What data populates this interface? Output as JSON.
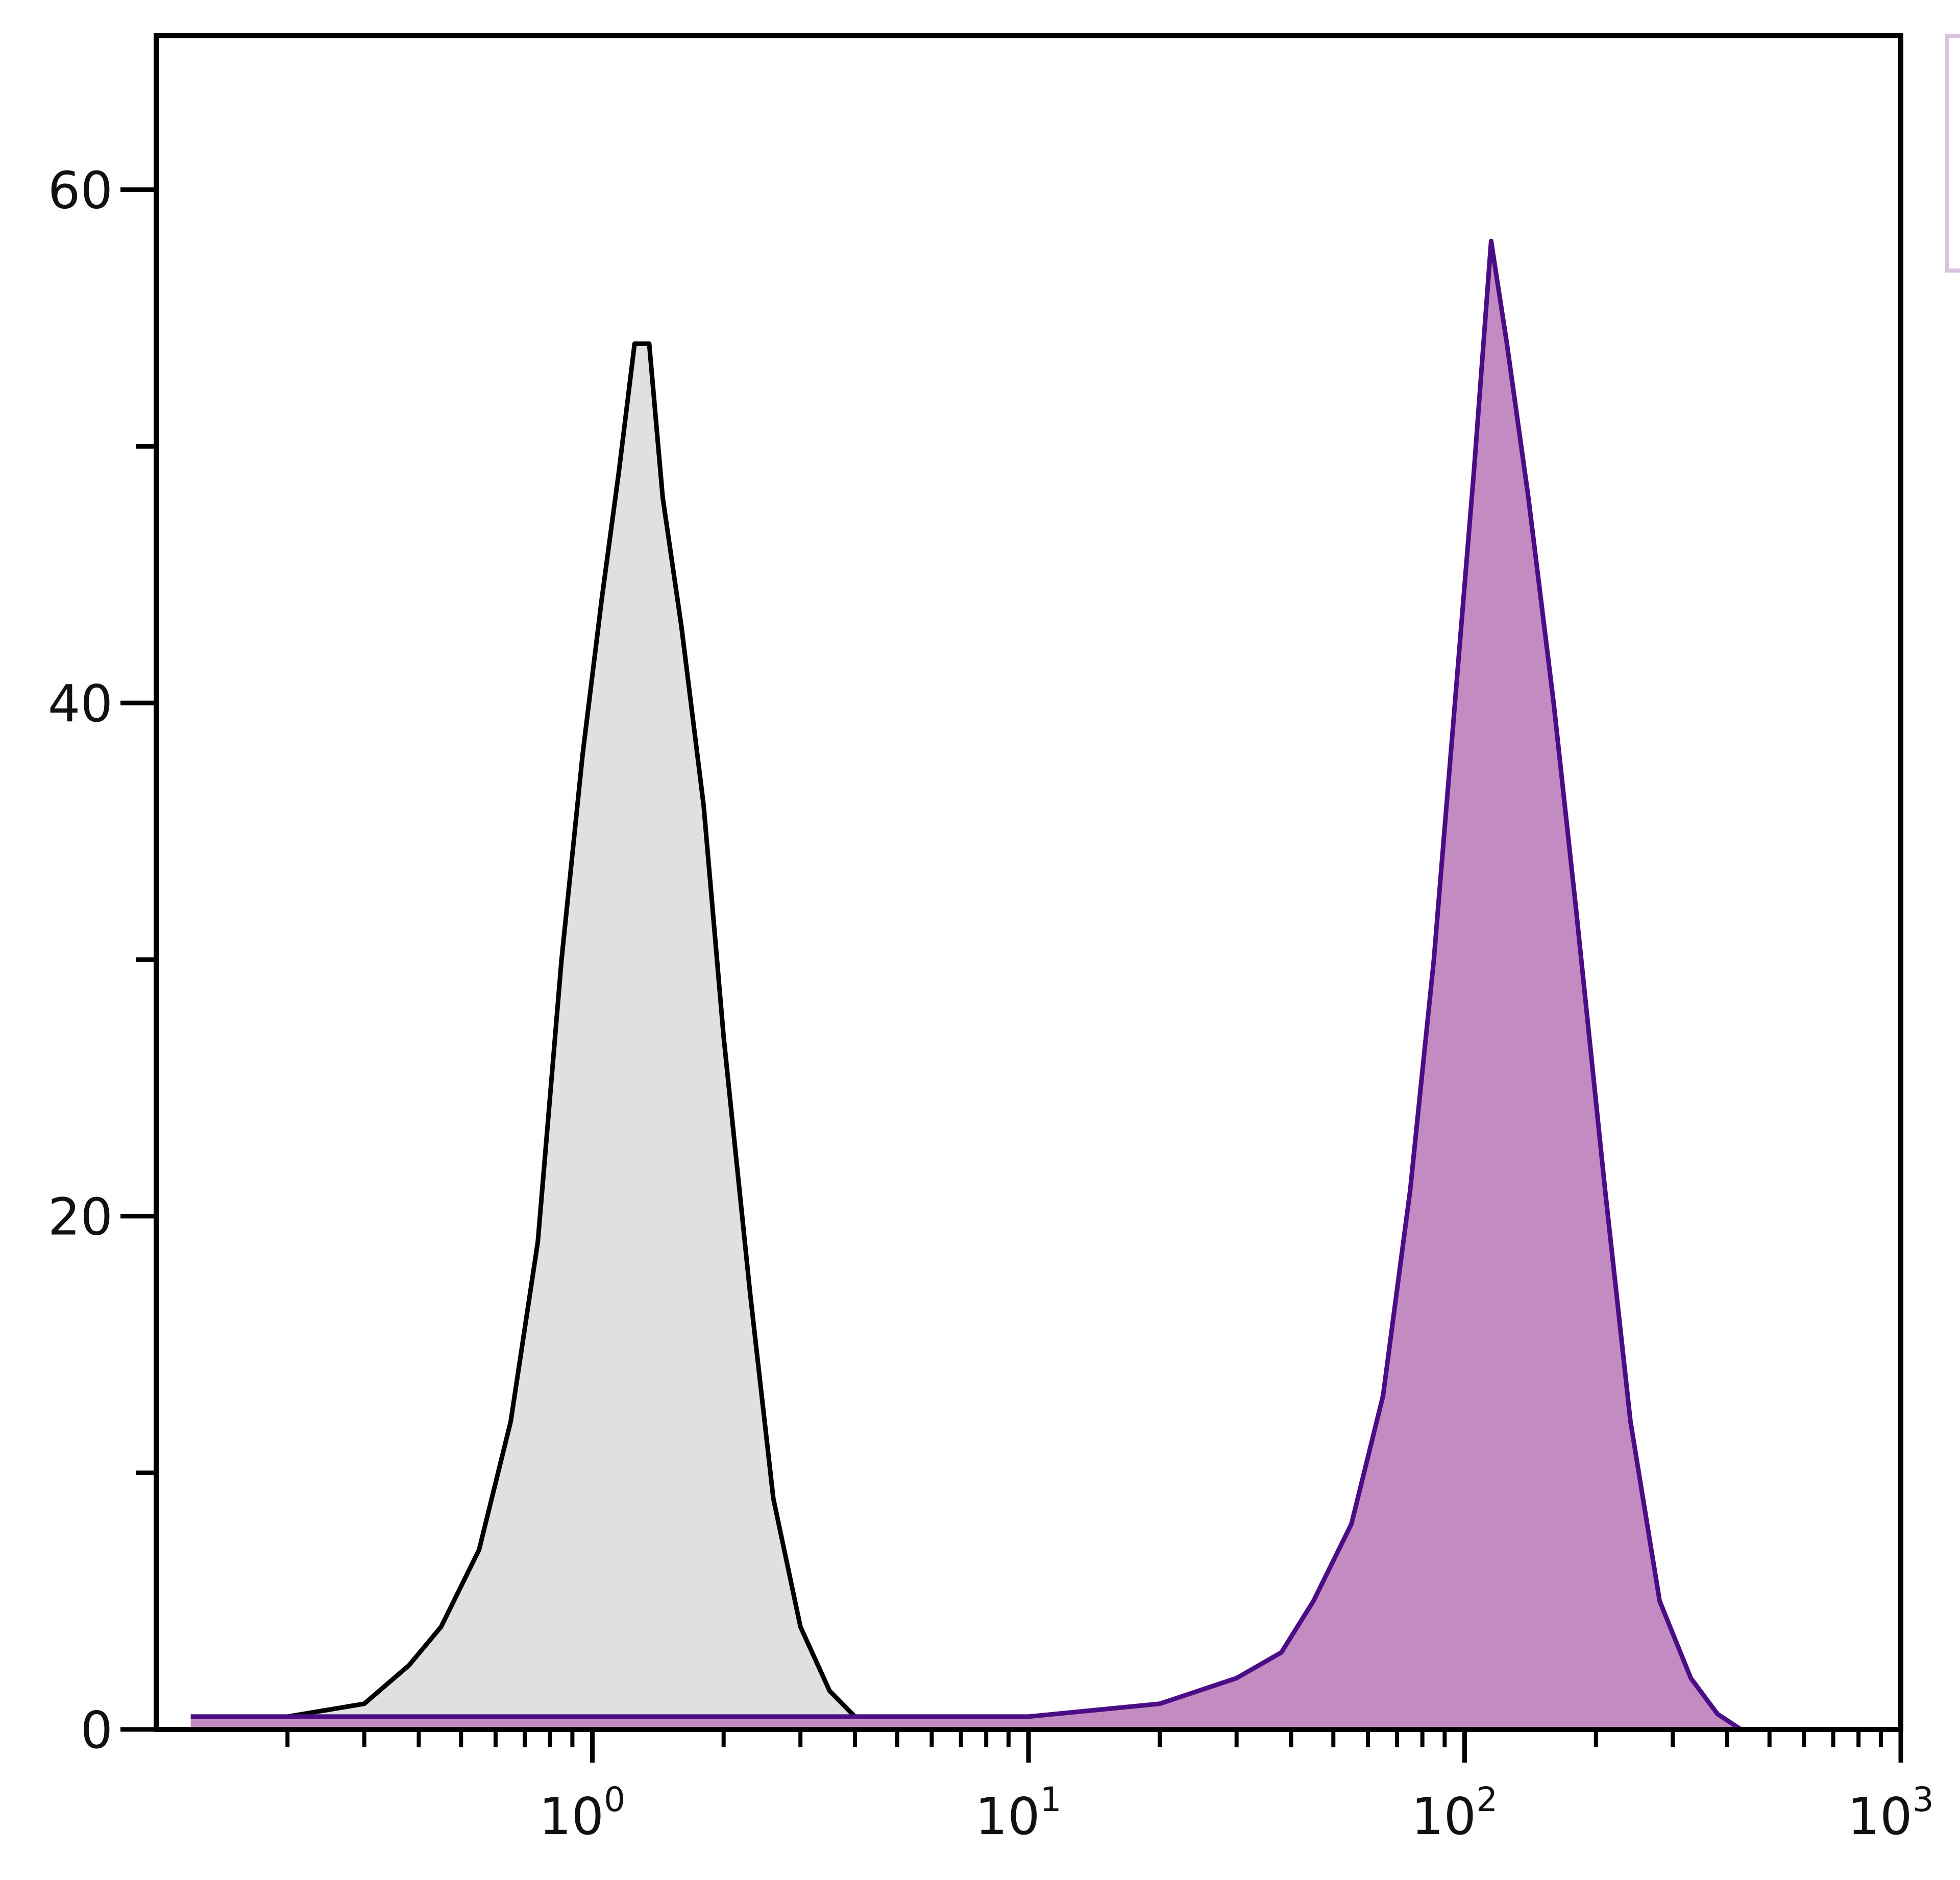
{
  "chart_data": {
    "type": "area",
    "title": "",
    "xlabel": "",
    "ylabel": "",
    "x_scale": "log",
    "xlim": [
      0.1,
      1000
    ],
    "ylim": [
      0,
      66
    ],
    "x_ticks": [
      {
        "value": 1,
        "base": "10",
        "exp": "0"
      },
      {
        "value": 10,
        "base": "10",
        "exp": "1"
      },
      {
        "value": 100,
        "base": "10",
        "exp": "2"
      },
      {
        "value": 1000,
        "base": "10",
        "exp": "3"
      }
    ],
    "y_ticks": [
      "0",
      "20",
      "40",
      "60"
    ],
    "y_minor_ticks": [
      10,
      30,
      50
    ],
    "grid": false,
    "legend": "top-right, clipped",
    "series": [
      {
        "fill": "#e0e0e0",
        "stroke": "#000000",
        "peak_x": 1.3,
        "x": [
          0.12,
          0.2,
          0.3,
          0.38,
          0.45,
          0.55,
          0.65,
          0.75,
          0.85,
          0.95,
          1.05,
          1.15,
          1.25,
          1.35,
          1.45,
          1.6,
          1.8,
          2.0,
          2.3,
          2.6,
          3.0,
          3.5,
          4.0,
          5.0,
          8.0
        ],
        "y": [
          0,
          0.5,
          1,
          2.5,
          4,
          7,
          12,
          19,
          30,
          38,
          44,
          49,
          54,
          54,
          48,
          43,
          36,
          27,
          17,
          9,
          4,
          1.5,
          0.5,
          0.2,
          0
        ]
      },
      {
        "fill": "#c28bc1",
        "stroke": "#4b0d85",
        "peak_x": 115,
        "x": [
          0.12,
          1,
          10,
          20,
          30,
          38,
          45,
          55,
          65,
          75,
          85,
          95,
          105,
          115,
          125,
          140,
          160,
          180,
          210,
          240,
          280,
          330,
          380,
          430
        ],
        "y": [
          0.5,
          0.5,
          0.5,
          1,
          2,
          3,
          5,
          8,
          13,
          21,
          30,
          40,
          49,
          58,
          54,
          48,
          40,
          32,
          21,
          12,
          5,
          2,
          0.6,
          0
        ]
      }
    ]
  }
}
